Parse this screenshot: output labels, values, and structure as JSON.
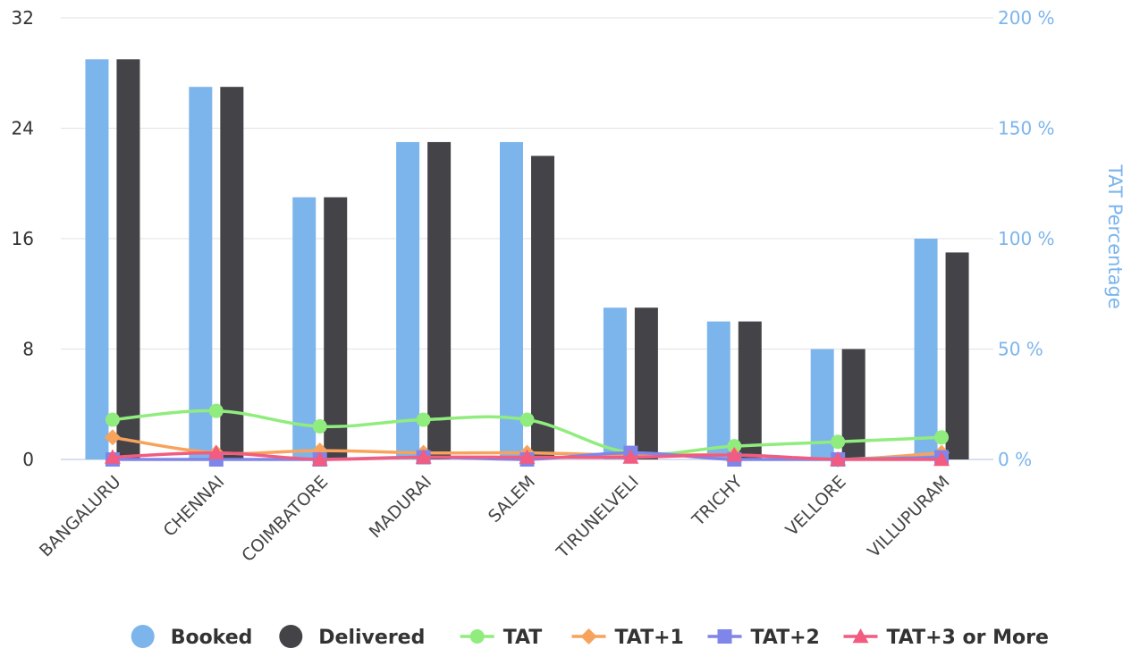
{
  "chart_data": {
    "type": "bar",
    "categories": [
      "BANGALURU",
      "CHENNAI",
      "COIMBATORE",
      "MADURAI",
      "SALEM",
      "TIRUNELVELI",
      "TRICHY",
      "VELLORE",
      "VILLUPURAM"
    ],
    "left_axis": {
      "ylim": [
        0,
        32
      ],
      "ticks": [
        0,
        8,
        16,
        24,
        32
      ],
      "tick_labels": [
        "0",
        "8",
        "16",
        "24",
        "32"
      ],
      "title": ""
    },
    "right_axis": {
      "ylim": [
        0,
        200
      ],
      "ticks": [
        0,
        50,
        100,
        150,
        200
      ],
      "tick_labels": [
        "0 %",
        "50 %",
        "100 %",
        "150 %",
        "200 %"
      ],
      "title": "TAT Percentage"
    },
    "series": [
      {
        "name": "Booked",
        "kind": "bar",
        "axis": "left",
        "color": "#7cb5ec",
        "values": [
          29,
          27,
          19,
          23,
          23,
          11,
          10,
          8,
          16
        ]
      },
      {
        "name": "Delivered",
        "kind": "bar",
        "axis": "left",
        "color": "#434348",
        "values": [
          29,
          27,
          19,
          23,
          22,
          11,
          10,
          8,
          15
        ]
      },
      {
        "name": "TAT",
        "kind": "line",
        "marker": "circle",
        "axis": "right",
        "color": "#90ed7d",
        "values": [
          18,
          22,
          15,
          18,
          18,
          3,
          6,
          8,
          10
        ]
      },
      {
        "name": "TAT+1",
        "kind": "line",
        "marker": "diamond",
        "axis": "right",
        "color": "#f7a35c",
        "values": [
          10,
          3,
          4,
          3,
          3,
          2,
          2,
          0,
          3
        ]
      },
      {
        "name": "TAT+2",
        "kind": "line",
        "marker": "square",
        "axis": "right",
        "color": "#8085e9",
        "values": [
          0,
          0,
          0,
          1,
          0,
          3,
          0,
          0,
          1
        ]
      },
      {
        "name": "TAT+3 or More",
        "kind": "line",
        "marker": "triangle",
        "axis": "right",
        "color": "#f15c80",
        "values": [
          1,
          3,
          0,
          1,
          1,
          1,
          2,
          0,
          0
        ]
      }
    ],
    "grid": true,
    "legend": "bottom-center"
  }
}
